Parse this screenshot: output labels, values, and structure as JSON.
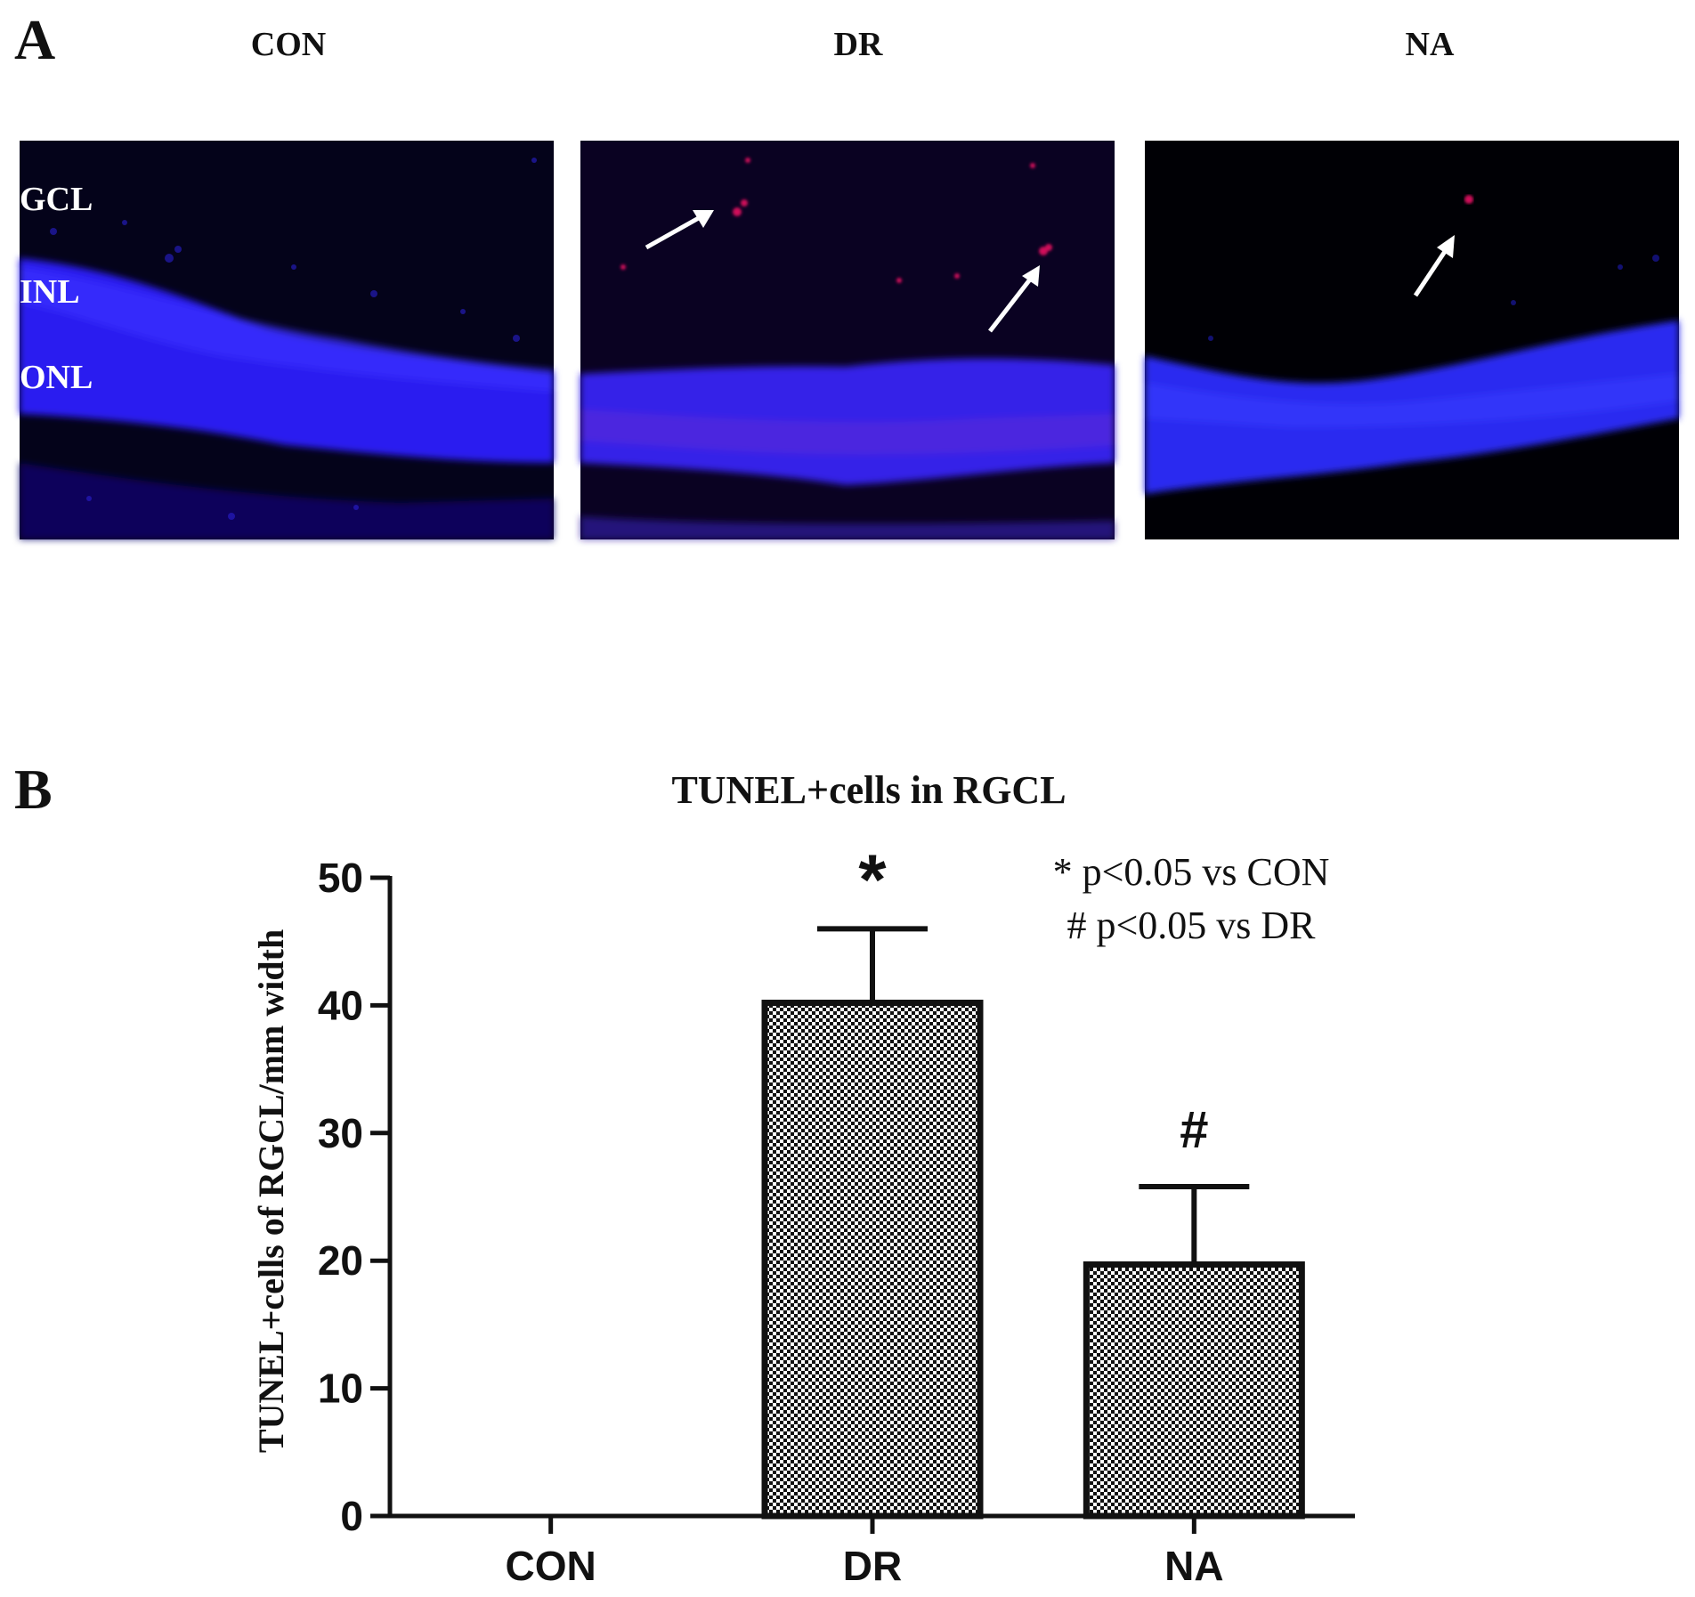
{
  "panel_a": {
    "label": "A",
    "columns": [
      "CON",
      "DR",
      "NA"
    ],
    "layer_labels": [
      "GCL",
      "INL",
      "ONL"
    ]
  },
  "panel_b": {
    "label": "B"
  },
  "chart_data": {
    "type": "bar",
    "title": "TUNEL+cells in RGCL",
    "xlabel": "",
    "ylabel": "TUNEL+cells of RGCL/mm width",
    "categories": [
      "CON",
      "DR",
      "NA"
    ],
    "values": [
      0,
      40.2,
      19.7
    ],
    "error_upper": [
      0,
      46.0,
      25.8
    ],
    "ylim": [
      0,
      50
    ],
    "yticks": [
      0,
      10,
      20,
      30,
      40,
      50
    ],
    "significance": [
      "",
      "*",
      "#"
    ],
    "annotations": [
      "* p<0.05 vs CON",
      "# p<0.05 vs DR"
    ],
    "bar_pattern": "checkerboard",
    "grid": false
  }
}
